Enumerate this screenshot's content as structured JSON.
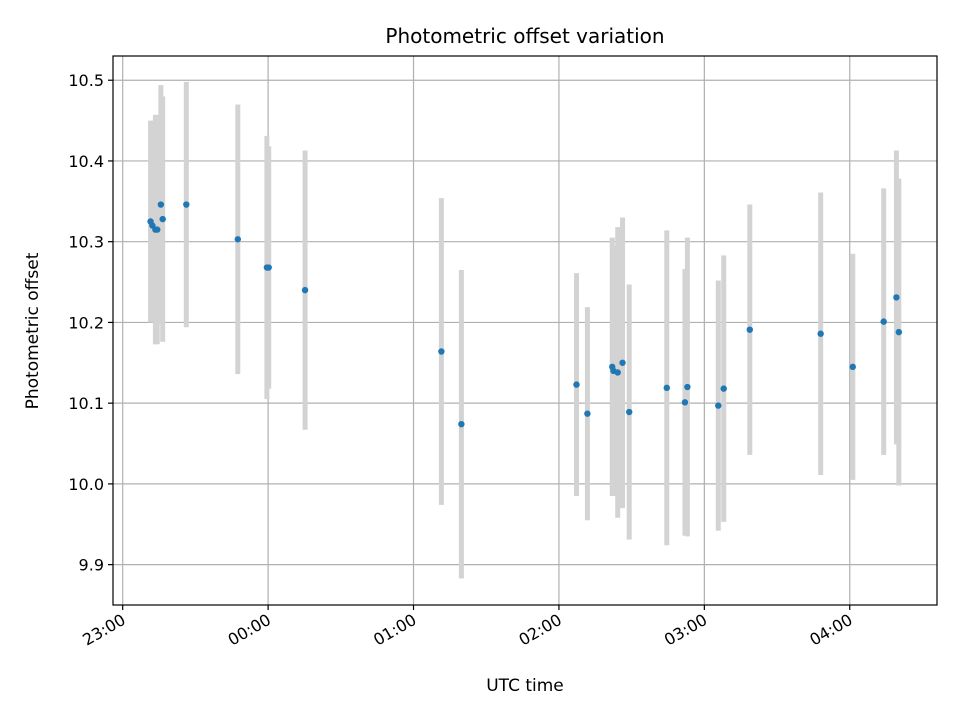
{
  "chart_data": {
    "type": "scatter",
    "title": "Photometric offset variation",
    "xlabel": "UTC time",
    "ylabel": "Photometric offset",
    "xlim": [
      "22:56",
      "04:36"
    ],
    "ylim": [
      9.85,
      10.53
    ],
    "x_ticks": [
      "23:00",
      "00:00",
      "01:00",
      "02:00",
      "03:00",
      "04:00"
    ],
    "y_ticks": [
      "9.9",
      "10.0",
      "10.1",
      "10.2",
      "10.3",
      "10.4",
      "10.5"
    ],
    "grid": true,
    "marker_color": "#1f77b4",
    "errorbar_color": "#d3d3d3",
    "points": [
      {
        "x": "23:11:30",
        "y": 10.325,
        "err": 0.125
      },
      {
        "x": "23:12:15",
        "y": 10.32,
        "err": 0.12
      },
      {
        "x": "23:13:30",
        "y": 10.315,
        "err": 0.142
      },
      {
        "x": "23:14:15",
        "y": 10.315,
        "err": 0.142
      },
      {
        "x": "23:15:45",
        "y": 10.346,
        "err": 0.148
      },
      {
        "x": "23:16:30",
        "y": 10.328,
        "err": 0.152
      },
      {
        "x": "23:26:15",
        "y": 10.346,
        "err": 0.152
      },
      {
        "x": "23:47:30",
        "y": 10.303,
        "err": 0.167
      },
      {
        "x": "23:59:30",
        "y": 10.268,
        "err": 0.163
      },
      {
        "x": "00:00:15",
        "y": 10.268,
        "err": 0.15
      },
      {
        "x": "00:15:15",
        "y": 10.24,
        "err": 0.173
      },
      {
        "x": "01:11:30",
        "y": 10.164,
        "err": 0.19
      },
      {
        "x": "01:19:45",
        "y": 10.074,
        "err": 0.191
      },
      {
        "x": "02:07:15",
        "y": 10.123,
        "err": 0.138
      },
      {
        "x": "02:11:45",
        "y": 10.087,
        "err": 0.132
      },
      {
        "x": "02:22:00",
        "y": 10.145,
        "err": 0.16
      },
      {
        "x": "02:22:30",
        "y": 10.14,
        "err": 0.155
      },
      {
        "x": "02:24:15",
        "y": 10.138,
        "err": 0.18
      },
      {
        "x": "02:26:15",
        "y": 10.15,
        "err": 0.18
      },
      {
        "x": "02:29:00",
        "y": 10.089,
        "err": 0.158
      },
      {
        "x": "02:44:30",
        "y": 10.119,
        "err": 0.195
      },
      {
        "x": "02:52:00",
        "y": 10.101,
        "err": 0.165
      },
      {
        "x": "02:53:00",
        "y": 10.12,
        "err": 0.185
      },
      {
        "x": "03:05:45",
        "y": 10.097,
        "err": 0.155
      },
      {
        "x": "03:08:00",
        "y": 10.118,
        "err": 0.165
      },
      {
        "x": "03:18:45",
        "y": 10.191,
        "err": 0.155
      },
      {
        "x": "03:48:00",
        "y": 10.186,
        "err": 0.175
      },
      {
        "x": "04:01:15",
        "y": 10.145,
        "err": 0.14
      },
      {
        "x": "04:14:00",
        "y": 10.201,
        "err": 0.165
      },
      {
        "x": "04:19:15",
        "y": 10.231,
        "err": 0.182
      },
      {
        "x": "04:20:15",
        "y": 10.188,
        "err": 0.19
      }
    ]
  }
}
